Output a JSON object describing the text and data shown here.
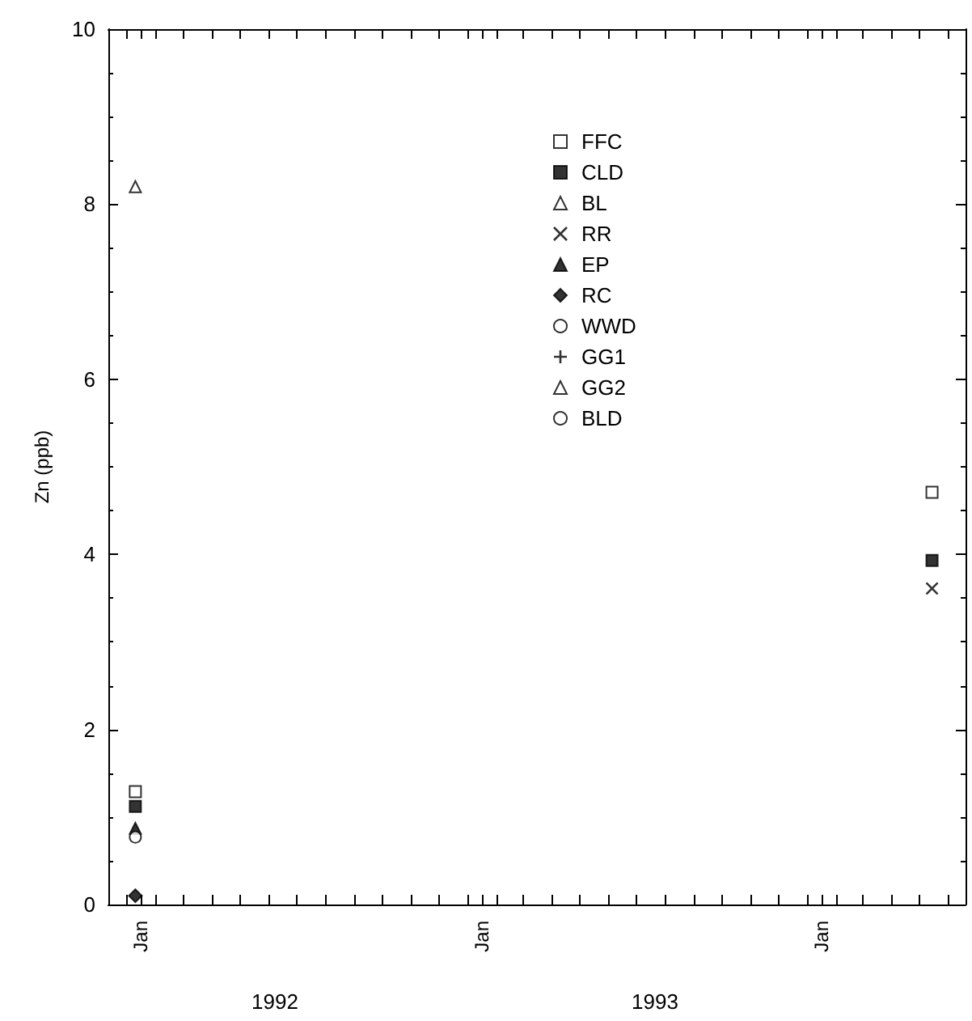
{
  "chart_data": {
    "type": "scatter",
    "ylabel": "Zn (ppb)",
    "xlim": [
      "1991-12-12",
      "1994-06-20"
    ],
    "xticks": [
      {
        "value": "1992-01-01",
        "label": null
      },
      {
        "value": "1992-02-01",
        "label": null
      },
      {
        "value": "1992-03-01",
        "label": null
      },
      {
        "value": "1992-04-01",
        "label": null
      },
      {
        "value": "1992-05-01",
        "label": null
      },
      {
        "value": "1992-06-01",
        "label": null
      },
      {
        "value": "1992-07-01",
        "label": null
      },
      {
        "value": "1992-08-01",
        "label": null
      },
      {
        "value": "1992-09-01",
        "label": null
      },
      {
        "value": "1992-10-01",
        "label": null
      },
      {
        "value": "1992-11-01",
        "label": null
      },
      {
        "value": "1992-12-01",
        "label": null
      },
      {
        "value": "1993-01-01",
        "label": null
      },
      {
        "value": "1993-02-01",
        "label": null
      },
      {
        "value": "1993-03-01",
        "label": null
      },
      {
        "value": "1993-04-01",
        "label": null
      },
      {
        "value": "1993-05-01",
        "label": null
      },
      {
        "value": "1993-06-01",
        "label": null
      },
      {
        "value": "1993-07-01",
        "label": null
      },
      {
        "value": "1993-08-01",
        "label": null
      },
      {
        "value": "1993-09-01",
        "label": null
      },
      {
        "value": "1993-10-01",
        "label": null
      },
      {
        "value": "1993-11-01",
        "label": null
      },
      {
        "value": "1993-12-01",
        "label": null
      },
      {
        "value": "1994-01-01",
        "label": null
      },
      {
        "value": "1994-02-01",
        "label": null
      },
      {
        "value": "1994-03-01",
        "label": null
      },
      {
        "value": "1994-04-01",
        "label": null
      },
      {
        "value": "1994-05-01",
        "label": null
      },
      {
        "value": "1994-06-01",
        "label": null
      },
      {
        "value": "1992-01-16",
        "label": "Jan"
      },
      {
        "value": "1993-01-16",
        "label": "Jan"
      },
      {
        "value": "1994-01-16",
        "label": "Jan"
      }
    ],
    "ylim": [
      0,
      10
    ],
    "yticks": [
      0,
      2,
      4,
      6,
      8,
      10
    ],
    "grid": false,
    "legend": "top",
    "annotations": [
      "1992",
      "1993"
    ],
    "series": [
      {
        "name": "FFC",
        "color": "#ffffff",
        "marker": "square",
        "x": [
          "1992-01-10",
          "1994-05-15"
        ],
        "values": [
          1.29,
          4.71
        ]
      },
      {
        "name": "CLD",
        "color": "#000000",
        "marker": "square",
        "x": [
          "1992-01-10",
          "1994-05-15"
        ],
        "values": [
          1.12,
          3.93
        ]
      },
      {
        "name": "BL",
        "color": "#ffffff",
        "marker": "triangle",
        "x": [
          "1992-01-10"
        ],
        "values": [
          8.2
        ]
      },
      {
        "name": "RR",
        "color": "#000000",
        "marker": "cross",
        "x": [
          "1994-05-15"
        ],
        "values": [
          3.61
        ]
      },
      {
        "name": "EP",
        "color": "#000000",
        "marker": "triangle",
        "x": [
          "1992-01-10"
        ],
        "values": [
          0.87
        ]
      },
      {
        "name": "RC",
        "color": "#000000",
        "marker": "diamond",
        "x": [
          "1992-01-10"
        ],
        "values": [
          0.1
        ]
      },
      {
        "name": "WWD",
        "color": "#ffffff",
        "marker": "circle",
        "x": [
          "1992-01-10"
        ],
        "values": [
          0.77
        ]
      },
      {
        "name": "GG1",
        "color": "#000000",
        "marker": "plus"
      },
      {
        "name": "GG2",
        "color": "#ffffff",
        "marker": "triangle-down"
      },
      {
        "name": "BLD",
        "color": "#ffffff",
        "marker": "circle"
      }
    ]
  }
}
